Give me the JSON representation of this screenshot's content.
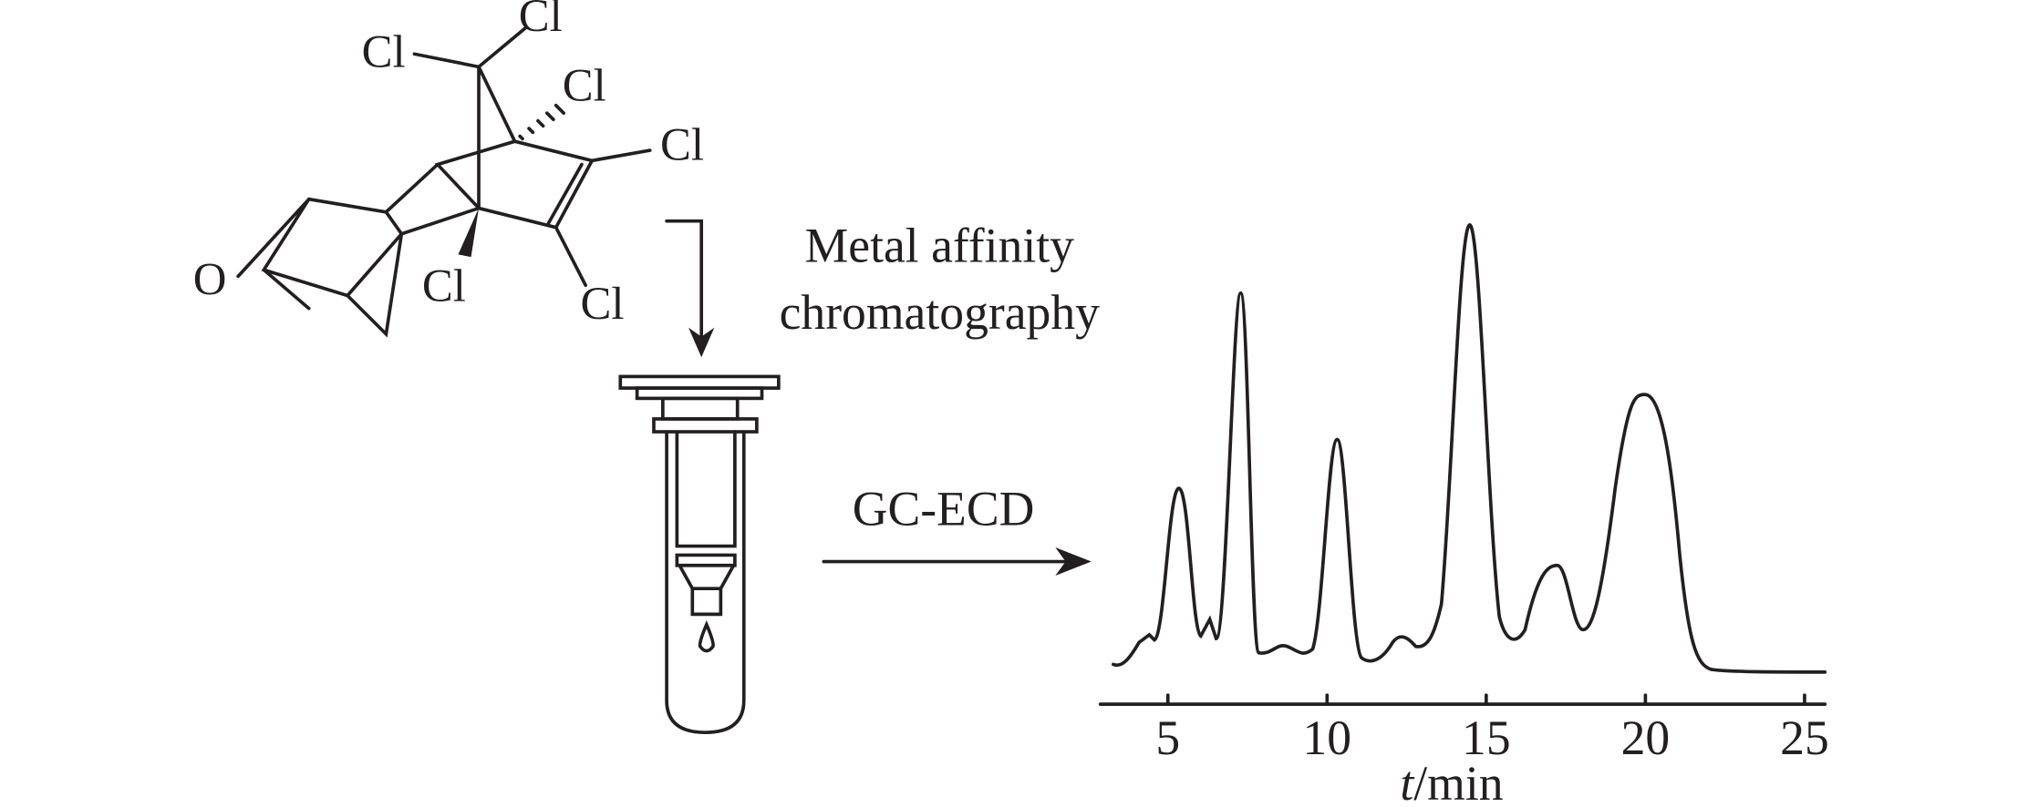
{
  "molecule": {
    "atoms": [
      "Cl",
      "Cl",
      "Cl",
      "Cl",
      "Cl",
      "Cl",
      "O"
    ]
  },
  "step1": {
    "label": [
      "Metal affinity",
      "chromatography"
    ]
  },
  "step2": {
    "label": "GC-ECD"
  },
  "chart_data": {
    "type": "line",
    "xlim": [
      3,
      25.6
    ],
    "xticks": [
      5,
      10,
      15,
      20,
      25
    ],
    "x_label_var": "t",
    "x_label_unit": "/min"
  }
}
